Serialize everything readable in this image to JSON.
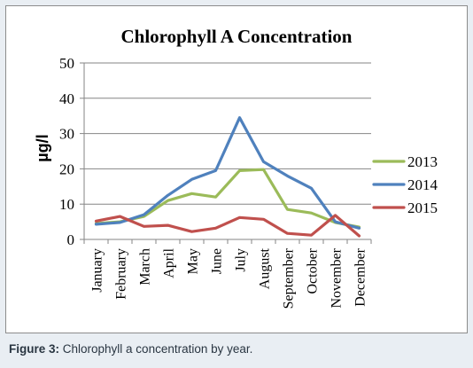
{
  "chart_data": {
    "type": "line",
    "title": "Chlorophyll A Concentration",
    "ylabel": "µg/l",
    "xlabel": "",
    "ylim": [
      0,
      50
    ],
    "yticks": [
      0,
      10,
      20,
      30,
      40,
      50
    ],
    "grid": true,
    "legend_position": "right",
    "categories": [
      "January",
      "February",
      "March",
      "April",
      "May",
      "June",
      "July",
      "August",
      "September",
      "October",
      "November",
      "December"
    ],
    "series": [
      {
        "name": "2013",
        "color": "#9bbb59",
        "values": [
          4.5,
          5.0,
          6.5,
          11.0,
          13.0,
          12.0,
          19.5,
          19.8,
          8.5,
          7.5,
          4.8,
          3.5
        ]
      },
      {
        "name": "2014",
        "color": "#4f81bd",
        "values": [
          4.3,
          4.8,
          7.0,
          12.5,
          17.0,
          19.5,
          34.5,
          22.0,
          18.0,
          14.5,
          5.0,
          3.2
        ]
      },
      {
        "name": "2015",
        "color": "#c0504d",
        "values": [
          5.2,
          6.5,
          3.7,
          4.0,
          2.2,
          3.2,
          6.2,
          5.7,
          1.7,
          1.2,
          6.8,
          1.0
        ]
      }
    ]
  },
  "caption": {
    "label": "Figure 3:",
    "text": " Chlorophyll a concentration by year."
  }
}
